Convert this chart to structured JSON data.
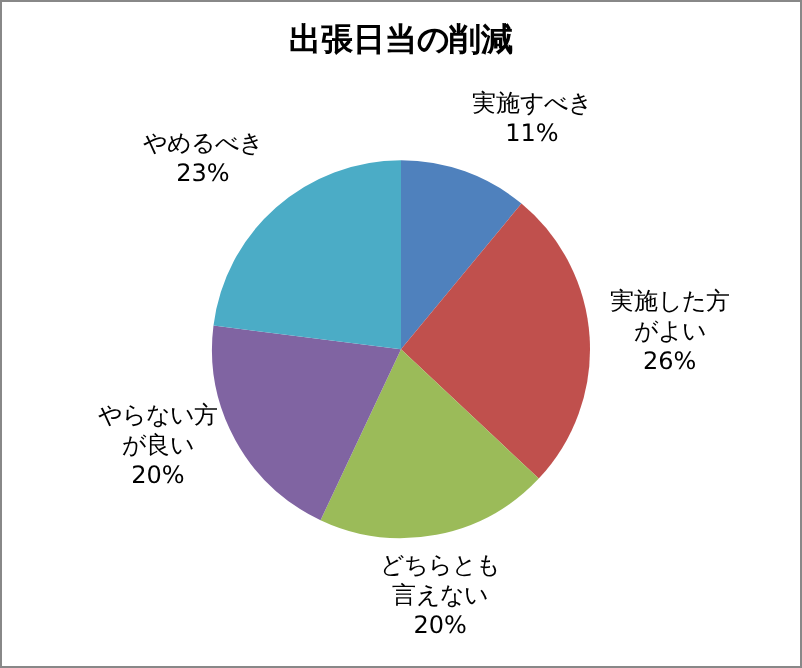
{
  "chart_data": {
    "type": "pie",
    "title": "出張日当の削減",
    "categories": [
      "実施すべき",
      "実施した方がよい",
      "どちらとも言えない",
      "やらない方が良い",
      "やめるべき"
    ],
    "values": [
      11,
      26,
      20,
      20,
      23
    ],
    "value_labels": [
      "11%",
      "26%",
      "20%",
      "20%",
      "23%"
    ],
    "colors": [
      "#4f81bd",
      "#c0504d",
      "#9bbb59",
      "#8064a2",
      "#4bacc6"
    ],
    "legend": false
  }
}
